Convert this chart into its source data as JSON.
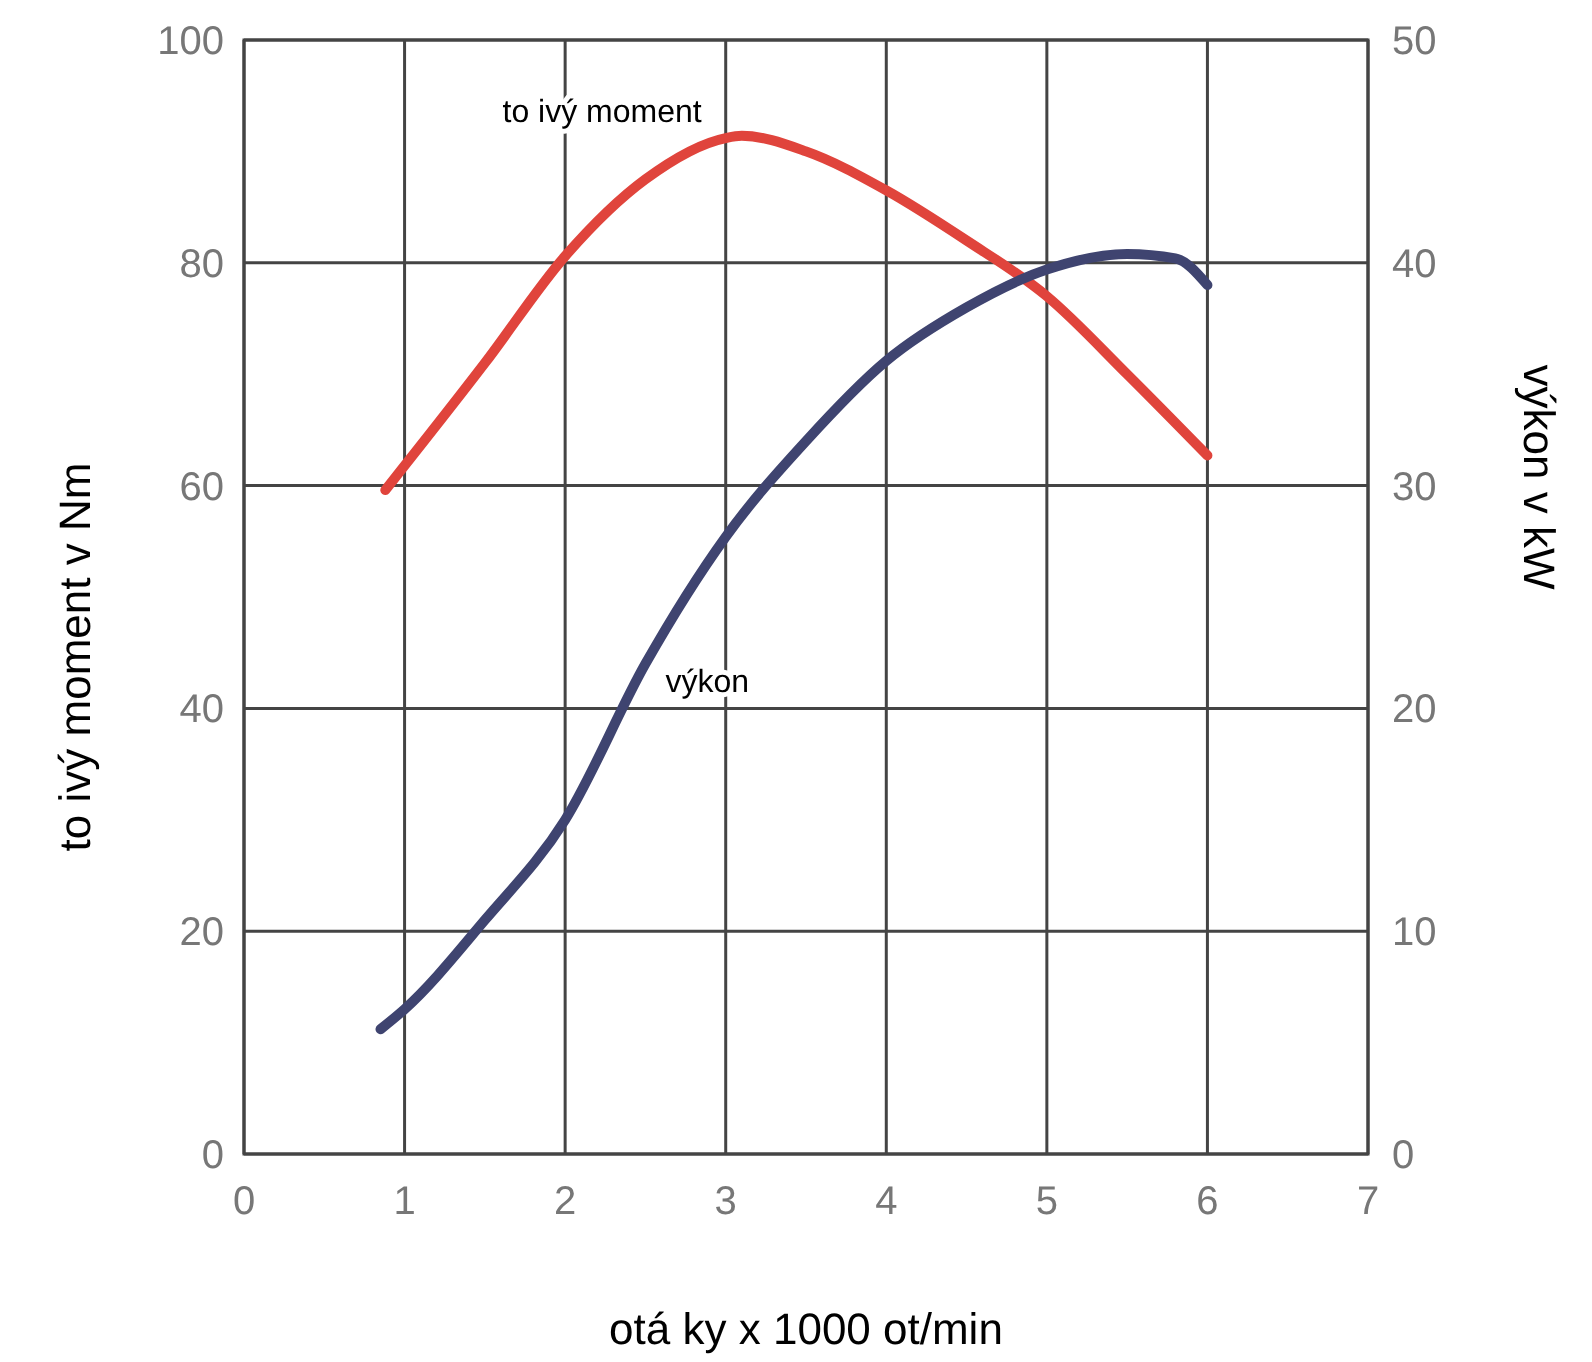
{
  "chart_data": {
    "type": "line",
    "xlabel": "otá ky x 1000 ot/min",
    "ylabel": "to ivý moment v Nm",
    "y2label": "výkon v kW",
    "xlim": [
      0,
      7
    ],
    "xticks": [
      0,
      1,
      2,
      3,
      4,
      5,
      6,
      7
    ],
    "ylim": [
      0,
      100
    ],
    "yticks": [
      0,
      20,
      40,
      60,
      80,
      100
    ],
    "y2lim": [
      0,
      50
    ],
    "y2ticks": [
      0,
      10,
      20,
      30,
      40,
      50
    ],
    "grid": true,
    "marker": "none",
    "line_style": "solid",
    "series": [
      {
        "name": "to ivý moment",
        "color": "#e0443c",
        "x": [
          0.88,
          1.5,
          2,
          2.5,
          3,
          3.1,
          3.5,
          4,
          4.5,
          5,
          5.5,
          6
        ],
        "values": [
          59.6,
          71,
          80.6,
          87.5,
          91.2,
          91.4,
          90,
          86.5,
          82,
          77,
          70,
          62.7
        ]
      },
      {
        "name": "výkon",
        "color": "#3f4470",
        "axis": "y2",
        "x": [
          0.85,
          1,
          1.5,
          2,
          2.5,
          3,
          3.5,
          4,
          4.5,
          5,
          5.5,
          5.8,
          6
        ],
        "values": [
          5.6,
          6.5,
          10.5,
          15,
          22,
          27.7,
          32,
          35.6,
          38,
          39.7,
          40.4,
          40.2,
          39
        ]
      }
    ]
  }
}
